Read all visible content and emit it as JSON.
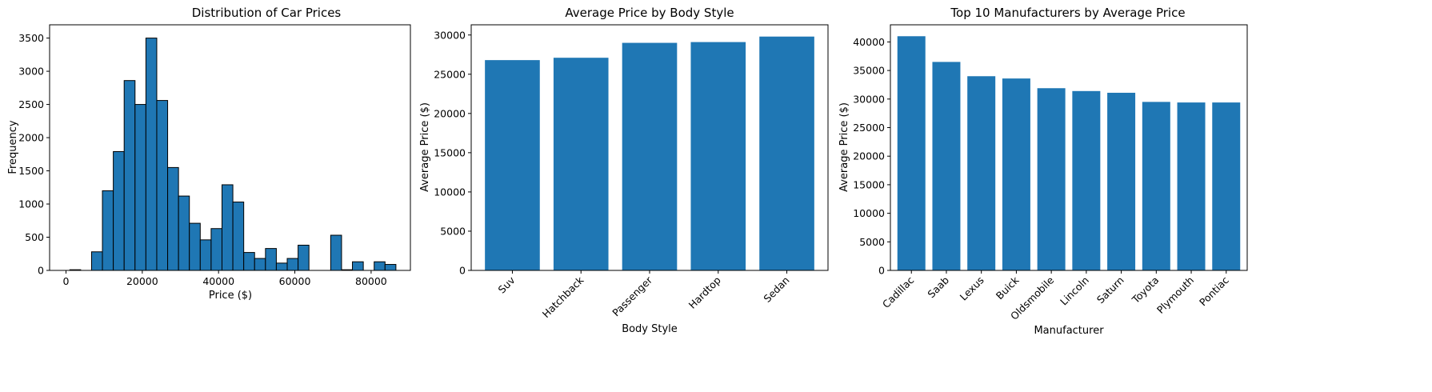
{
  "colors": {
    "bar": "#1f77b4",
    "edge": "#000000",
    "axis": "#000000"
  },
  "chart_data": [
    {
      "type": "bar",
      "variant": "histogram",
      "title": "Distribution of Car Prices",
      "xlabel": "Price ($)",
      "ylabel": "Frequency",
      "xlim": [
        -4300,
        90300
      ],
      "ylim": [
        0,
        3700
      ],
      "xticks": [
        0,
        20000,
        40000,
        60000,
        80000
      ],
      "yticks": [
        0,
        500,
        1000,
        1500,
        2000,
        2500,
        3000,
        3500
      ],
      "bin_start": 1000,
      "bin_width": 2850,
      "values": [
        10,
        0,
        280,
        1200,
        1790,
        2860,
        2500,
        3500,
        2560,
        1550,
        1120,
        710,
        460,
        630,
        1290,
        1030,
        270,
        180,
        330,
        110,
        180,
        380,
        0,
        0,
        530,
        10,
        130,
        0,
        130,
        90
      ],
      "grid": false
    },
    {
      "type": "bar",
      "title": "Average Price by Body Style",
      "xlabel": "Body Style",
      "ylabel": "Average Price ($)",
      "categories": [
        "Suv",
        "Hatchback",
        "Passenger",
        "Hardtop",
        "Sedan"
      ],
      "values": [
        26800,
        27100,
        29000,
        29100,
        29800
      ],
      "ylim": [
        0,
        31300
      ],
      "yticks": [
        0,
        5000,
        10000,
        15000,
        20000,
        25000,
        30000
      ],
      "grid": false
    },
    {
      "type": "bar",
      "title": "Top 10 Manufacturers by Average Price",
      "xlabel": "Manufacturer",
      "ylabel": "Average Price ($)",
      "categories": [
        "Cadillac",
        "Saab",
        "Lexus",
        "Buick",
        "Oldsmobile",
        "Lincoln",
        "Saturn",
        "Toyota",
        "Plymouth",
        "Pontiac"
      ],
      "values": [
        41000,
        36500,
        34000,
        33600,
        31900,
        31400,
        31100,
        29500,
        29400,
        29400
      ],
      "ylim": [
        0,
        43000
      ],
      "yticks": [
        0,
        5000,
        10000,
        15000,
        20000,
        25000,
        30000,
        35000,
        40000
      ],
      "grid": false
    }
  ]
}
